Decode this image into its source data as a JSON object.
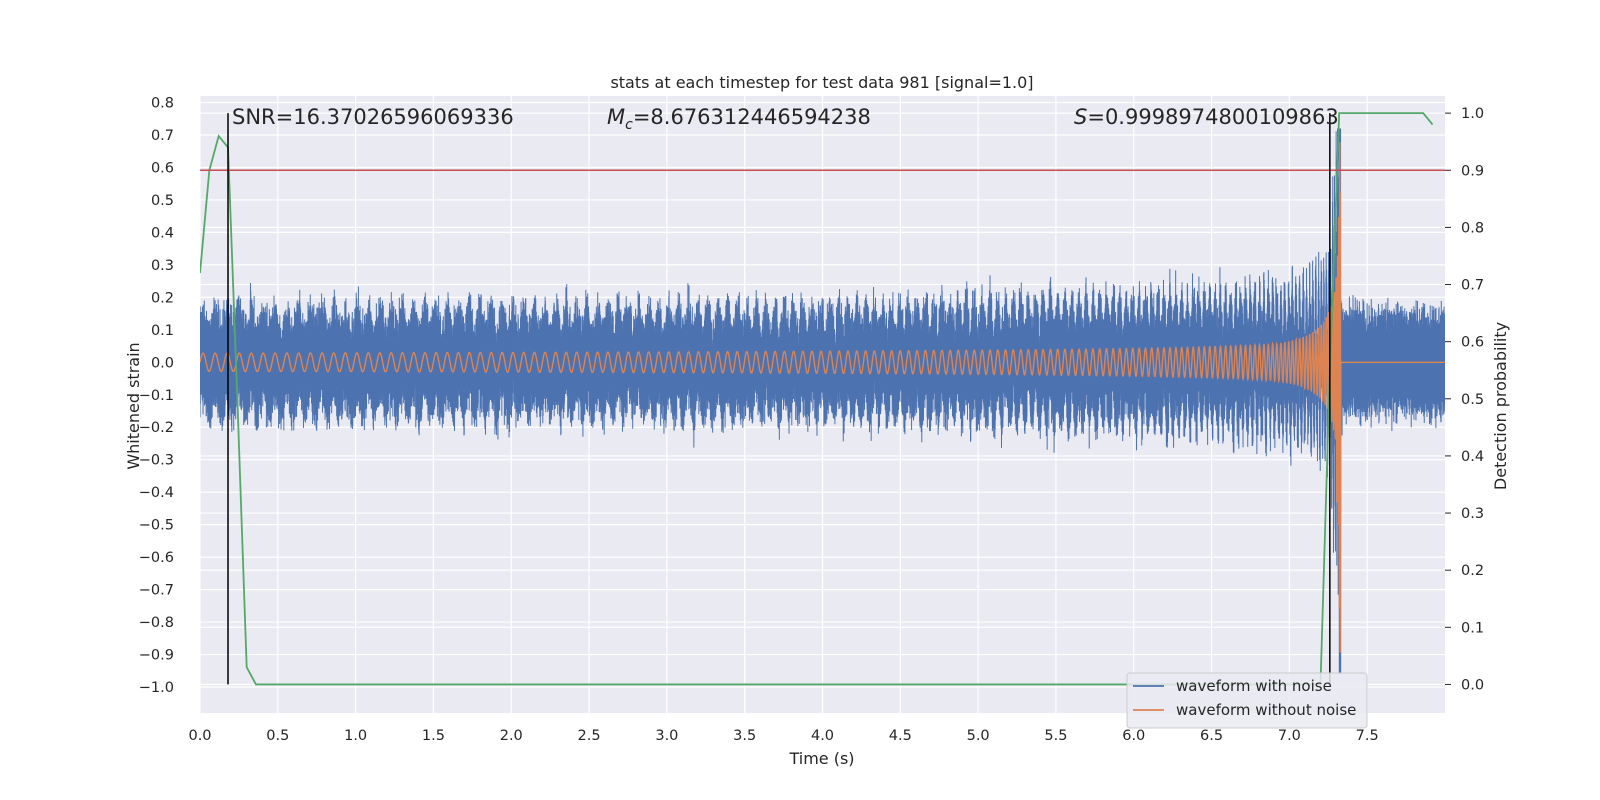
{
  "chart_data": {
    "type": "line",
    "title": "stats at each timestep for test data 981 [signal=1.0]",
    "xlabel": "Time (s)",
    "ylabel": "Whitened strain",
    "y2label": "Detection probability",
    "xlim": [
      0.0,
      8.0
    ],
    "ylim": [
      -1.08,
      0.82
    ],
    "y2lim": [
      -0.05,
      1.03
    ],
    "xticks": [
      "0.0",
      "0.5",
      "1.0",
      "1.5",
      "2.0",
      "2.5",
      "3.0",
      "3.5",
      "4.0",
      "4.5",
      "5.0",
      "5.5",
      "6.0",
      "6.5",
      "7.0",
      "7.5"
    ],
    "yticks": [
      "0.8",
      "0.7",
      "0.6",
      "0.5",
      "0.4",
      "0.3",
      "0.2",
      "0.1",
      "0.0",
      "−0.1",
      "−0.2",
      "−0.3",
      "−0.4",
      "−0.5",
      "−0.6",
      "−0.7",
      "−0.8",
      "−0.9",
      "−1.0"
    ],
    "y2ticks": [
      "0.0",
      "0.1",
      "0.2",
      "0.3",
      "0.4",
      "0.5",
      "0.6",
      "0.7",
      "0.8",
      "0.9",
      "1.0"
    ],
    "grid": true,
    "legend_position": "lower-right",
    "annotations": {
      "snr": "SNR=16.37026596069336",
      "mc_symbol": "M",
      "mc_sub": "c",
      "mc_value": "=8.676312446594238",
      "s_symbol": "S",
      "s_value": "=0.9998974800109863"
    },
    "colors": {
      "background": "#eaeaf2",
      "grid": "#ffffff",
      "noise": "#4c72b0",
      "clean": "#dd8452",
      "probability": "#55a868",
      "threshold": "#c44e52",
      "markers": "#000000"
    },
    "series": [
      {
        "name": "waveform with noise",
        "kind": "noisy-chirp",
        "noise_amplitude": 0.18,
        "merger_time": 7.33,
        "peak": 0.72,
        "t_end": 8.0
      },
      {
        "name": "waveform without noise",
        "kind": "chirp",
        "start_amplitude": 0.028,
        "merger_time": 7.33,
        "peak": 0.68,
        "min": -0.98,
        "t_end": 8.0
      },
      {
        "kind": "probability",
        "axis": "right",
        "x": [
          0.0,
          0.06,
          0.12,
          0.18,
          0.24,
          0.3,
          0.36,
          7.08,
          7.14,
          7.2,
          7.26,
          7.32,
          7.44,
          7.8,
          7.86,
          7.92
        ],
        "y": [
          0.72,
          0.9,
          0.96,
          0.94,
          0.5,
          0.03,
          0.0,
          0.0,
          0.0,
          0.0,
          0.55,
          1.0,
          1.0,
          1.0,
          1.0,
          0.98
        ]
      }
    ],
    "threshold_line": 0.9,
    "marker_lines": [
      0.18,
      7.26
    ]
  }
}
